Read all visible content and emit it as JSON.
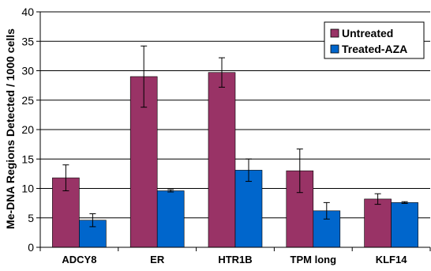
{
  "chart_data": {
    "type": "bar",
    "categories": [
      "ADCY8",
      "ER",
      "HTR1B",
      "TPM long",
      "KLF14"
    ],
    "series": [
      {
        "name": "Untreated",
        "color": "#993366",
        "values": [
          11.8,
          29.0,
          29.7,
          13.0,
          8.2
        ],
        "errors": [
          2.2,
          5.2,
          2.5,
          3.7,
          0.9
        ]
      },
      {
        "name": "Treated-AZA",
        "color": "#0066CC",
        "values": [
          4.6,
          9.6,
          13.1,
          6.2,
          7.6
        ],
        "errors": [
          1.1,
          0.2,
          1.9,
          1.4,
          0.15
        ]
      }
    ],
    "ylabel": "Me-DNA Regions Detected / 1000 cells",
    "xlabel": "",
    "ylim": [
      0,
      40
    ],
    "yticks": [
      0,
      5,
      10,
      15,
      20,
      25,
      30,
      35,
      40
    ],
    "grid": true,
    "legend_position": "top-right"
  }
}
